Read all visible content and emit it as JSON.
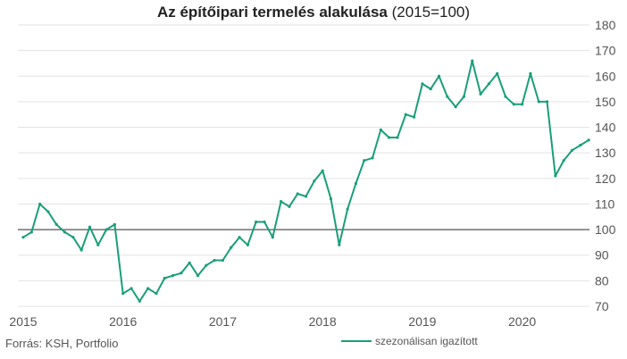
{
  "colors": {
    "series": "#1a9e7a",
    "grid": "#e3e3e3",
    "baseline": "#555555",
    "text": "#555555"
  },
  "chart_data": {
    "type": "line",
    "title_bold": "Az építőipari termelés alakulása",
    "title_rest": " (2015=100)",
    "source": "Forrás: KSH, Portfolio",
    "ylim": [
      70,
      180
    ],
    "yticks": [
      70,
      80,
      90,
      100,
      110,
      120,
      130,
      140,
      150,
      160,
      170,
      180
    ],
    "xlabels": [
      "2015",
      "2016",
      "2017",
      "2018",
      "2019",
      "2020"
    ],
    "reference_line": 100,
    "grid": true,
    "legend_position": "bottom-right",
    "series": [
      {
        "name": "szezonálisan igazított",
        "start": "2015-01",
        "values": [
          97,
          99,
          110,
          107,
          102,
          99,
          97,
          92,
          101,
          94,
          100,
          102,
          75,
          77,
          72,
          77,
          75,
          81,
          82,
          83,
          87,
          82,
          86,
          88,
          88,
          93,
          97,
          94,
          103,
          103,
          97,
          111,
          109,
          114,
          113,
          119,
          123,
          112,
          94,
          108,
          118,
          127,
          128,
          139,
          136,
          136,
          145,
          144,
          157,
          155,
          160,
          152,
          148,
          152,
          166,
          153,
          157,
          161,
          152,
          149,
          149,
          161,
          150,
          150,
          121,
          127,
          131,
          133,
          135
        ]
      }
    ]
  }
}
